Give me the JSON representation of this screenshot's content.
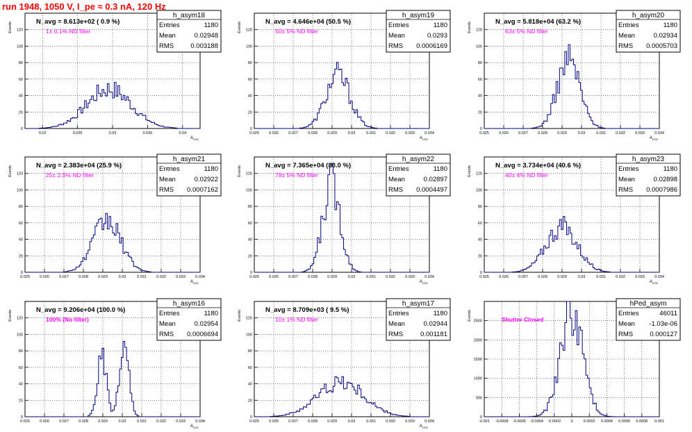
{
  "canvas_title": "run 1948,  1050 V, I_pe ≈ 0.3 nA, 120 Hz",
  "colors": {
    "title": "#ff0000",
    "annotation": "#ff00ff",
    "histogram": "#000080",
    "grid": "#000000"
  },
  "chart_data": [
    {
      "type": "histogram",
      "name": "h_asym18",
      "ylabel": "Events",
      "xlabel": "A_LED",
      "header": "N_avg = 8.613e+02 ( 0.9 %)",
      "note": "1± 0.1% ND filter",
      "stats": {
        "entries": "1180",
        "mean": "0.02948",
        "rms": "0.003188"
      },
      "xlim": [
        0.0175,
        0.0425
      ],
      "ylim": [
        0,
        140
      ],
      "grid": true,
      "xticks": [
        0.02,
        0.025,
        0.03,
        0.035,
        0.04
      ],
      "xtick_labels": [
        "0.02",
        "0.025",
        "0.03",
        "0.035",
        "0.04"
      ],
      "yticks": [
        0,
        20,
        40,
        60,
        80,
        100,
        120
      ],
      "ytick_labels": [
        "0",
        "20",
        "40",
        "60",
        "80",
        "100",
        "120"
      ],
      "mu": 0.02948,
      "sigma": 0.003188,
      "peaks": [],
      "peak_count": 48
    },
    {
      "type": "histogram",
      "name": "h_asym19",
      "ylabel": "Events",
      "xlabel": "A_LED",
      "header": "N_avg = 4.646e+04 (50.5 %)",
      "note": "50± 5% ND filter",
      "stats": {
        "entries": "1180",
        "mean": "0.0293",
        "rms": "0.0006169"
      },
      "xlim": [
        0.025,
        0.034
      ],
      "ylim": [
        0,
        140
      ],
      "grid": true,
      "xticks": [
        0.025,
        0.026,
        0.027,
        0.028,
        0.029,
        0.03,
        0.031,
        0.032,
        0.033,
        0.034
      ],
      "xtick_labels": [
        "0.025",
        "0.026",
        "0.027",
        "0.028",
        "0.029",
        "0.03",
        "0.031",
        "0.032",
        "0.033",
        "0.034"
      ],
      "yticks": [
        0,
        20,
        40,
        60,
        80,
        100,
        120
      ],
      "ytick_labels": [
        "0",
        "20",
        "40",
        "60",
        "80",
        "100",
        "120"
      ],
      "mu": 0.0293,
      "sigma": 0.0006169,
      "peaks": [],
      "peak_count": 65
    },
    {
      "type": "histogram",
      "name": "h_asym20",
      "ylabel": "Events",
      "xlabel": "A_LED",
      "header": "N_avg = 5.818e+04 (63.2 %)",
      "note": "63± 5% ND filter",
      "stats": {
        "entries": "1180",
        "mean": "0.02934",
        "rms": "0.0005703"
      },
      "xlim": [
        0.025,
        0.034
      ],
      "ylim": [
        0,
        140
      ],
      "grid": true,
      "xticks": [
        0.025,
        0.026,
        0.027,
        0.028,
        0.029,
        0.03,
        0.031,
        0.032,
        0.033,
        0.034
      ],
      "xtick_labels": [
        "0.025",
        "0.026",
        "0.027",
        "0.028",
        "0.029",
        "0.03",
        "0.031",
        "0.032",
        "0.033",
        "0.034"
      ],
      "yticks": [
        0,
        20,
        40,
        60,
        80,
        100,
        120
      ],
      "ytick_labels": [
        "0",
        "20",
        "40",
        "60",
        "80",
        "100",
        "120"
      ],
      "mu": 0.02934,
      "sigma": 0.0005703,
      "peaks": [],
      "peak_count": 85
    },
    {
      "type": "histogram",
      "name": "h_asym21",
      "ylabel": "Events",
      "xlabel": "A_LED",
      "header": "N_avg = 2.383e+04 (25.9 %)",
      "note": "25± 2.5% ND filter",
      "stats": {
        "entries": "1180",
        "mean": "0.02922",
        "rms": "0.0007162"
      },
      "xlim": [
        0.025,
        0.034
      ],
      "ylim": [
        0,
        140
      ],
      "grid": true,
      "xticks": [
        0.025,
        0.026,
        0.027,
        0.028,
        0.029,
        0.03,
        0.031,
        0.032,
        0.033,
        0.034
      ],
      "xtick_labels": [
        "0.025",
        "0.026",
        "0.027",
        "0.028",
        "0.029",
        "0.03",
        "0.031",
        "0.032",
        "0.033",
        "0.034"
      ],
      "yticks": [
        0,
        20,
        40,
        60,
        80,
        100,
        120
      ],
      "ytick_labels": [
        "0",
        "20",
        "40",
        "60",
        "80",
        "100",
        "120"
      ],
      "mu": 0.02922,
      "sigma": 0.0007162,
      "peaks": [],
      "peak_count": 62
    },
    {
      "type": "histogram",
      "name": "h_asym22",
      "ylabel": "Events",
      "xlabel": "A_LED",
      "header": "N_avg = 7.365e+04 (80.0 %)",
      "note": "79± 5% ND filter",
      "stats": {
        "entries": "1180",
        "mean": "0.02897",
        "rms": "0.0004497"
      },
      "xlim": [
        0.025,
        0.034
      ],
      "ylim": [
        0,
        140
      ],
      "grid": true,
      "xticks": [
        0.025,
        0.026,
        0.027,
        0.028,
        0.029,
        0.03,
        0.031,
        0.032,
        0.033,
        0.034
      ],
      "xtick_labels": [
        "0.025",
        "0.026",
        "0.027",
        "0.028",
        "0.029",
        "0.03",
        "0.031",
        "0.032",
        "0.033",
        "0.034"
      ],
      "yticks": [
        0,
        20,
        40,
        60,
        80,
        100,
        120
      ],
      "ytick_labels": [
        "0",
        "20",
        "40",
        "60",
        "80",
        "100",
        "120"
      ],
      "mu": 0.02897,
      "sigma": 0.0004497,
      "peaks": [],
      "peak_count": 108
    },
    {
      "type": "histogram",
      "name": "h_asym23",
      "ylabel": "Events",
      "xlabel": "A_LED",
      "header": "N_avg = 3.734e+04 (40.6 %)",
      "note": "40± 4% ND filter",
      "stats": {
        "entries": "1180",
        "mean": "0.02898",
        "rms": "0.0007986"
      },
      "xlim": [
        0.025,
        0.034
      ],
      "ylim": [
        0,
        140
      ],
      "grid": true,
      "xticks": [
        0.025,
        0.026,
        0.027,
        0.028,
        0.029,
        0.03,
        0.031,
        0.032,
        0.033,
        0.034
      ],
      "xtick_labels": [
        "0.025",
        "0.026",
        "0.027",
        "0.028",
        "0.029",
        "0.03",
        "0.031",
        "0.032",
        "0.033",
        "0.034"
      ],
      "yticks": [
        0,
        20,
        40,
        60,
        80,
        100,
        120
      ],
      "ytick_labels": [
        "0",
        "20",
        "40",
        "60",
        "80",
        "100",
        "120"
      ],
      "mu": 0.02898,
      "sigma": 0.0007986,
      "peaks": [],
      "peak_count": 55
    },
    {
      "type": "histogram",
      "name": "h_asym16",
      "ylabel": "Events",
      "xlabel": "A_LED",
      "header": "N_avg = 9.206e+04 (100.0 %)",
      "note": "100% (No filter)",
      "stats": {
        "entries": "1180",
        "mean": "0.02954",
        "rms": "0.0006694"
      },
      "xlim": [
        0.025,
        0.034
      ],
      "ylim": [
        0,
        140
      ],
      "grid": true,
      "xticks": [
        0.025,
        0.026,
        0.027,
        0.028,
        0.029,
        0.03,
        0.031,
        0.032,
        0.033,
        0.034
      ],
      "xtick_labels": [
        "0.025",
        "0.026",
        "0.027",
        "0.028",
        "0.029",
        "0.03",
        "0.031",
        "0.032",
        "0.033",
        "0.034"
      ],
      "yticks": [
        0,
        20,
        40,
        60,
        80,
        100,
        120
      ],
      "ytick_labels": [
        "0",
        "20",
        "40",
        "60",
        "80",
        "100",
        "120"
      ],
      "mu": 0.02954,
      "sigma": 0.0006694,
      "peaks": [
        [
          0.02895,
          70
        ],
        [
          0.0301,
          85
        ]
      ],
      "peak_count": 85
    },
    {
      "type": "histogram",
      "name": "h_asym17",
      "ylabel": "Events",
      "xlabel": "A_LED",
      "header": "N_avg = 8.709e+03 ( 9.5 %)",
      "note": "10± 1% ND filter",
      "stats": {
        "entries": "1180",
        "mean": "0.02944",
        "rms": "0.001181"
      },
      "xlim": [
        0.025,
        0.034
      ],
      "ylim": [
        0,
        140
      ],
      "grid": true,
      "xticks": [
        0.025,
        0.026,
        0.027,
        0.028,
        0.029,
        0.03,
        0.031,
        0.032,
        0.033,
        0.034
      ],
      "xtick_labels": [
        "0.025",
        "0.026",
        "0.027",
        "0.028",
        "0.029",
        "0.03",
        "0.031",
        "0.032",
        "0.033",
        "0.034"
      ],
      "yticks": [
        0,
        20,
        40,
        60,
        80,
        100,
        120
      ],
      "ytick_labels": [
        "0",
        "20",
        "40",
        "60",
        "80",
        "100",
        "120"
      ],
      "mu": 0.02944,
      "sigma": 0.001181,
      "peaks": [],
      "peak_count": 42
    },
    {
      "type": "histogram",
      "name": "hPed_asym",
      "ylabel": "Events",
      "xlabel": "",
      "header": "",
      "note": "Shutter Closed",
      "stats": {
        "entries": "46011",
        "mean": "-1.03e-06",
        "rms": "0.000127"
      },
      "xlim": [
        -0.001,
        0.001
      ],
      "ylim": [
        0,
        3000
      ],
      "grid": true,
      "xticks": [
        -0.001,
        -0.0008,
        -0.0006,
        -0.0004,
        -0.0002,
        0,
        0.0002,
        0.0004,
        0.0006,
        0.0008,
        0.001
      ],
      "xtick_labels": [
        "-0.001",
        "-0.0008",
        "-0.0006",
        "-0.0004",
        "-0.0002",
        "0",
        "0.0002",
        "0.0004",
        "0.0006",
        "0.0008",
        "0.001"
      ],
      "yticks": [
        0,
        500,
        1000,
        1500,
        2000,
        2500
      ],
      "ytick_labels": [
        "0",
        "500",
        "1000",
        "1500",
        "2000",
        "2500"
      ],
      "mu": -1.03e-06,
      "sigma": 0.000127,
      "peaks": [],
      "peak_count": 2780
    }
  ]
}
